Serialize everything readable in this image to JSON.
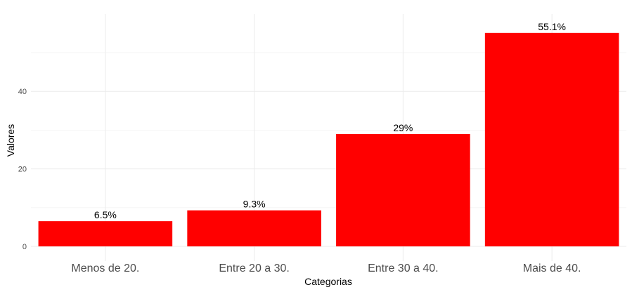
{
  "chart_data": {
    "type": "bar",
    "categories": [
      "Menos de 20.",
      "Entre 20 a 30.",
      "Entre 30 a 40.",
      "Mais de 40."
    ],
    "values": [
      6.5,
      9.3,
      29.0,
      55.1
    ],
    "data_labels": [
      "6.5%",
      "9.3%",
      "29%",
      "55.1%"
    ],
    "xlabel": "Categorias",
    "ylabel": "Valores",
    "ylim": [
      0,
      57.9
    ],
    "yticks": [
      0,
      20,
      40
    ],
    "ytick_labels": [
      "0",
      "20",
      "40"
    ],
    "grid": true,
    "bar_color": "#ff0000"
  }
}
